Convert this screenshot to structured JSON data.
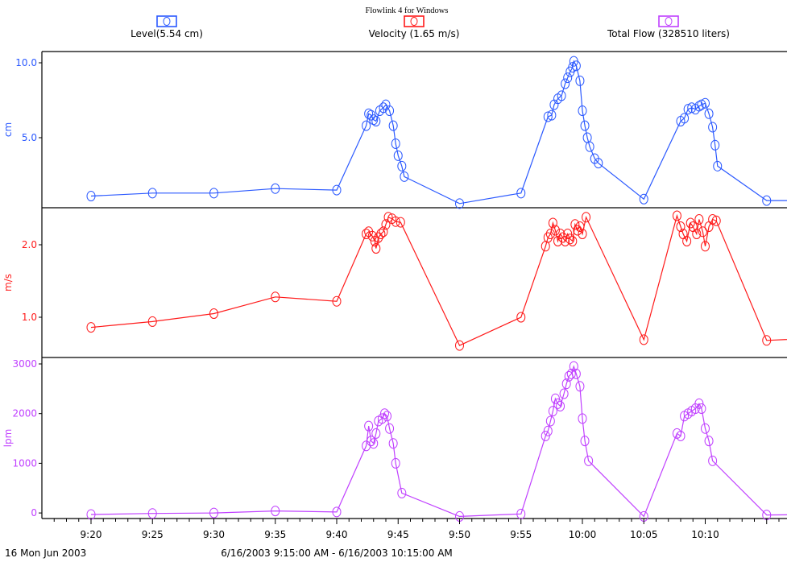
{
  "title": "Flowlink 4 for Windows",
  "legend": [
    {
      "label": "Level(5.54 cm)",
      "color": "#2b59ff"
    },
    {
      "label": "Velocity (1.65 m/s)",
      "color": "#ff1a1a"
    },
    {
      "label": "Total Flow (328510 liters)",
      "color": "#c040ff"
    }
  ],
  "footer": {
    "left": "16 Mon Jun 2003",
    "center": "6/16/2003 9:15:00 AM - 6/16/2003 10:15:00 AM"
  },
  "chart_data": {
    "type": "line",
    "x_ticks": [
      "9:20",
      "9:25",
      "9:30",
      "9:35",
      "9:40",
      "9:45",
      "9:50",
      "9:55",
      "10:00",
      "10:05",
      "10:10"
    ],
    "x_range_minutes": [
      0,
      60
    ],
    "panels": [
      {
        "name": "level",
        "ylabel": "cm",
        "color": "#2b59ff",
        "yticks": [
          {
            "v": 10,
            "label": "10.0"
          },
          {
            "v": 5,
            "label": "5.0"
          }
        ],
        "ylim": [
          0,
          11
        ],
        "series": [
          [
            0,
            1.1
          ],
          [
            5,
            1.3
          ],
          [
            10,
            1.3
          ],
          [
            15,
            1.6
          ],
          [
            20,
            1.5
          ],
          [
            22.4,
            5.8
          ],
          [
            22.6,
            6.6
          ],
          [
            22.8,
            6.5
          ],
          [
            23.0,
            6.2
          ],
          [
            23.2,
            6.1
          ],
          [
            23.5,
            6.8
          ],
          [
            23.8,
            7.0
          ],
          [
            24.0,
            7.2
          ],
          [
            24.3,
            6.8
          ],
          [
            24.6,
            5.8
          ],
          [
            24.8,
            4.6
          ],
          [
            25.0,
            3.8
          ],
          [
            25.3,
            3.1
          ],
          [
            25.5,
            2.4
          ],
          [
            30.0,
            0.6
          ],
          [
            35.0,
            1.3
          ],
          [
            37.2,
            6.4
          ],
          [
            37.5,
            6.5
          ],
          [
            37.7,
            7.2
          ],
          [
            38.0,
            7.6
          ],
          [
            38.3,
            7.8
          ],
          [
            38.6,
            8.6
          ],
          [
            38.8,
            9.0
          ],
          [
            39.0,
            9.4
          ],
          [
            39.2,
            9.7
          ],
          [
            39.3,
            10.1
          ],
          [
            39.5,
            9.8
          ],
          [
            39.8,
            8.8
          ],
          [
            40.0,
            6.8
          ],
          [
            40.2,
            5.8
          ],
          [
            40.4,
            5.0
          ],
          [
            40.6,
            4.4
          ],
          [
            41.0,
            3.6
          ],
          [
            41.3,
            3.3
          ],
          [
            45.0,
            0.9
          ],
          [
            48.0,
            6.1
          ],
          [
            48.3,
            6.3
          ],
          [
            48.6,
            6.9
          ],
          [
            48.9,
            7.0
          ],
          [
            49.2,
            6.9
          ],
          [
            49.5,
            7.1
          ],
          [
            49.7,
            7.2
          ],
          [
            50.0,
            7.3
          ],
          [
            50.3,
            6.6
          ],
          [
            50.6,
            5.7
          ],
          [
            50.8,
            4.5
          ],
          [
            51.0,
            3.1
          ],
          [
            55.0,
            0.8
          ],
          [
            60.0,
            0.8
          ]
        ]
      },
      {
        "name": "velocity",
        "ylabel": "m/s",
        "color": "#ff1a1a",
        "yticks": [
          {
            "v": 2.0,
            "label": "2.0"
          },
          {
            "v": 1.0,
            "label": "1.0"
          }
        ],
        "ylim": [
          0.55,
          2.5
        ],
        "series": [
          [
            0,
            0.86
          ],
          [
            5,
            0.94
          ],
          [
            10,
            1.05
          ],
          [
            15,
            1.28
          ],
          [
            20,
            1.22
          ],
          [
            22.4,
            2.15
          ],
          [
            22.6,
            2.18
          ],
          [
            22.9,
            2.12
          ],
          [
            23.1,
            2.05
          ],
          [
            23.2,
            1.95
          ],
          [
            23.4,
            2.1
          ],
          [
            23.6,
            2.15
          ],
          [
            23.8,
            2.18
          ],
          [
            24.0,
            2.28
          ],
          [
            24.2,
            2.38
          ],
          [
            24.5,
            2.36
          ],
          [
            24.8,
            2.32
          ],
          [
            25.2,
            2.31
          ],
          [
            30.0,
            0.61
          ],
          [
            35.0,
            1.0
          ],
          [
            37.0,
            1.98
          ],
          [
            37.2,
            2.1
          ],
          [
            37.4,
            2.15
          ],
          [
            37.6,
            2.3
          ],
          [
            37.8,
            2.2
          ],
          [
            38.0,
            2.05
          ],
          [
            38.2,
            2.15
          ],
          [
            38.4,
            2.1
          ],
          [
            38.6,
            2.05
          ],
          [
            38.8,
            2.15
          ],
          [
            39.0,
            2.08
          ],
          [
            39.2,
            2.05
          ],
          [
            39.4,
            2.28
          ],
          [
            39.6,
            2.2
          ],
          [
            39.8,
            2.25
          ],
          [
            40.0,
            2.15
          ],
          [
            40.3,
            2.38
          ],
          [
            45.0,
            0.69
          ],
          [
            47.7,
            2.4
          ],
          [
            48.0,
            2.25
          ],
          [
            48.2,
            2.15
          ],
          [
            48.5,
            2.05
          ],
          [
            48.8,
            2.3
          ],
          [
            49.0,
            2.25
          ],
          [
            49.3,
            2.15
          ],
          [
            49.5,
            2.35
          ],
          [
            49.8,
            2.18
          ],
          [
            50.0,
            1.98
          ],
          [
            50.3,
            2.25
          ],
          [
            50.6,
            2.35
          ],
          [
            50.9,
            2.33
          ],
          [
            55.0,
            0.68
          ],
          [
            60.0,
            0.72
          ]
        ]
      },
      {
        "name": "total-flow",
        "ylabel": "lpm",
        "color": "#c040ff",
        "yticks": [
          {
            "v": 3000,
            "label": "3000"
          },
          {
            "v": 2000,
            "label": "2000"
          },
          {
            "v": 1000,
            "label": "1000"
          },
          {
            "v": 0,
            "label": "0"
          }
        ],
        "ylim": [
          -100,
          3000
        ],
        "series": [
          [
            0,
            -30
          ],
          [
            5,
            -10
          ],
          [
            10,
            0
          ],
          [
            15,
            40
          ],
          [
            20,
            20
          ],
          [
            22.4,
            1350
          ],
          [
            22.6,
            1750
          ],
          [
            22.8,
            1450
          ],
          [
            23.0,
            1400
          ],
          [
            23.2,
            1600
          ],
          [
            23.4,
            1850
          ],
          [
            23.7,
            1900
          ],
          [
            23.9,
            2000
          ],
          [
            24.1,
            1950
          ],
          [
            24.3,
            1700
          ],
          [
            24.6,
            1400
          ],
          [
            24.8,
            1000
          ],
          [
            25.3,
            400
          ],
          [
            30.0,
            -70
          ],
          [
            35.0,
            -20
          ],
          [
            37.0,
            1550
          ],
          [
            37.2,
            1650
          ],
          [
            37.4,
            1850
          ],
          [
            37.6,
            2050
          ],
          [
            37.8,
            2300
          ],
          [
            38.0,
            2200
          ],
          [
            38.2,
            2150
          ],
          [
            38.5,
            2400
          ],
          [
            38.7,
            2600
          ],
          [
            38.9,
            2750
          ],
          [
            39.1,
            2800
          ],
          [
            39.3,
            2950
          ],
          [
            39.5,
            2800
          ],
          [
            39.8,
            2550
          ],
          [
            40.0,
            1900
          ],
          [
            40.2,
            1450
          ],
          [
            40.5,
            1050
          ],
          [
            45.0,
            -70
          ],
          [
            47.7,
            1600
          ],
          [
            48.0,
            1550
          ],
          [
            48.3,
            1950
          ],
          [
            48.6,
            2000
          ],
          [
            48.9,
            2050
          ],
          [
            49.2,
            2100
          ],
          [
            49.5,
            2200
          ],
          [
            49.7,
            2100
          ],
          [
            50.0,
            1700
          ],
          [
            50.3,
            1450
          ],
          [
            50.6,
            1050
          ],
          [
            55.0,
            -40
          ],
          [
            60.0,
            -30
          ]
        ]
      }
    ]
  }
}
